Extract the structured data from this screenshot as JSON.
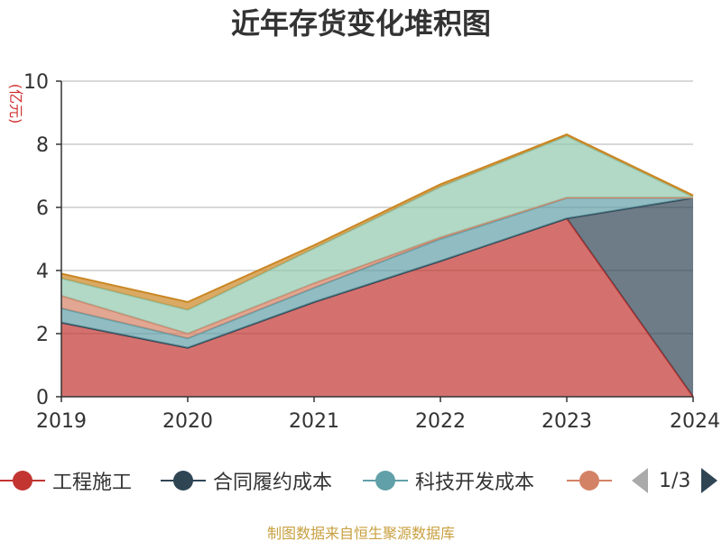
{
  "chart_data": {
    "type": "area",
    "stacked": true,
    "title": "近年存货变化堆积图",
    "unit_label": "(亿元)",
    "categories": [
      "2019",
      "2020",
      "2021",
      "2022",
      "2023",
      "2024"
    ],
    "ylim": [
      0,
      10
    ],
    "yticks": [
      0,
      2,
      4,
      6,
      8,
      10
    ],
    "grid": true,
    "series": [
      {
        "name": "工程施工",
        "color": "#c23531",
        "values": [
          2.35,
          1.55,
          3.0,
          4.3,
          5.65,
          0
        ]
      },
      {
        "name": "合同履约成本",
        "color": "#2f4554",
        "values": [
          0,
          0,
          0,
          0,
          0,
          6.3
        ]
      },
      {
        "name": "科技开发成本",
        "color": "#61a0a8",
        "values": [
          0.45,
          0.3,
          0.45,
          0.7,
          0.65,
          0
        ]
      },
      {
        "name": "",
        "color": "#d48265",
        "values": [
          0.4,
          0.15,
          0.15,
          0.05,
          0.01,
          0.01
        ]
      },
      {
        "name": "",
        "color": "#91c7ae",
        "values": [
          0.55,
          0.75,
          1.1,
          1.6,
          1.95,
          0.02
        ]
      },
      {
        "name": "",
        "color": "#ca8622",
        "values": [
          0.15,
          0.25,
          0.1,
          0.08,
          0.05,
          0.05
        ]
      }
    ]
  },
  "legend": {
    "items": [
      {
        "label": "工程施工",
        "color": "#c23531"
      },
      {
        "label": "合同履约成本",
        "color": "#2f4554"
      },
      {
        "label": "科技开发成本",
        "color": "#61a0a8"
      },
      {
        "label": "",
        "color": "#d48265"
      }
    ],
    "page_text": "1/3"
  },
  "footer": {
    "source_text": "制图数据来自恒生聚源数据库"
  }
}
